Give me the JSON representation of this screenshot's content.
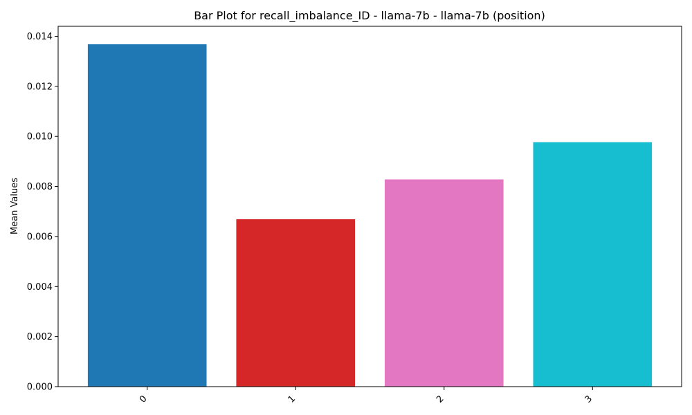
{
  "chart_data": {
    "type": "bar",
    "title": "Bar Plot for recall_imbalance_ID - llama-7b - llama-7b (position)",
    "xlabel": "",
    "ylabel": "Mean Values",
    "categories": [
      "0",
      "1",
      "2",
      "3"
    ],
    "values": [
      0.01368,
      0.00669,
      0.00828,
      0.00977
    ],
    "colors": [
      "#1f77b4",
      "#d62728",
      "#e377c2",
      "#17becf"
    ],
    "ylim": [
      0,
      0.0144
    ],
    "yticks": [
      0.0,
      0.002,
      0.004,
      0.006,
      0.008,
      0.01,
      0.012,
      0.014
    ],
    "ytick_labels": [
      "0.000",
      "0.002",
      "0.004",
      "0.006",
      "0.008",
      "0.010",
      "0.012",
      "0.014"
    ],
    "xtick_rotation": 45,
    "grid": false,
    "legend": "none"
  }
}
